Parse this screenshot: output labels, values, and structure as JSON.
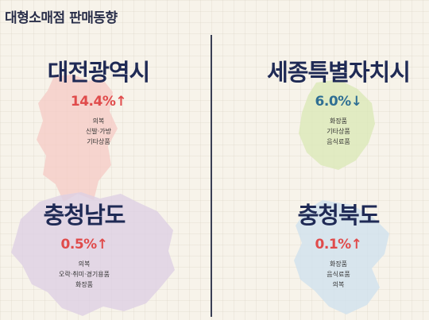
{
  "title": "대형소매점 판매동향",
  "regions": [
    {
      "name": "대전광역시",
      "rate": "14.4%",
      "direction": "up",
      "arrow": "↑",
      "items": [
        "의복",
        "신발·가방",
        "기타상품"
      ],
      "map_color": "#f6c9c4"
    },
    {
      "name": "세종특별자치시",
      "rate": "6.0%",
      "direction": "down",
      "arrow": "↓",
      "items": [
        "화장품",
        "기타상품",
        "음식료품"
      ],
      "map_color": "#dbe9b8"
    },
    {
      "name": "충청남도",
      "rate": "0.5%",
      "direction": "up",
      "arrow": "↑",
      "items": [
        "의복",
        "오락·취미·경기용품",
        "화장품"
      ],
      "map_color": "#ddd0e3"
    },
    {
      "name": "충청북도",
      "rate": "0.1%",
      "direction": "up",
      "arrow": "↑",
      "items": [
        "화장품",
        "음식료품",
        "의복"
      ],
      "map_color": "#cfe1ee"
    }
  ]
}
